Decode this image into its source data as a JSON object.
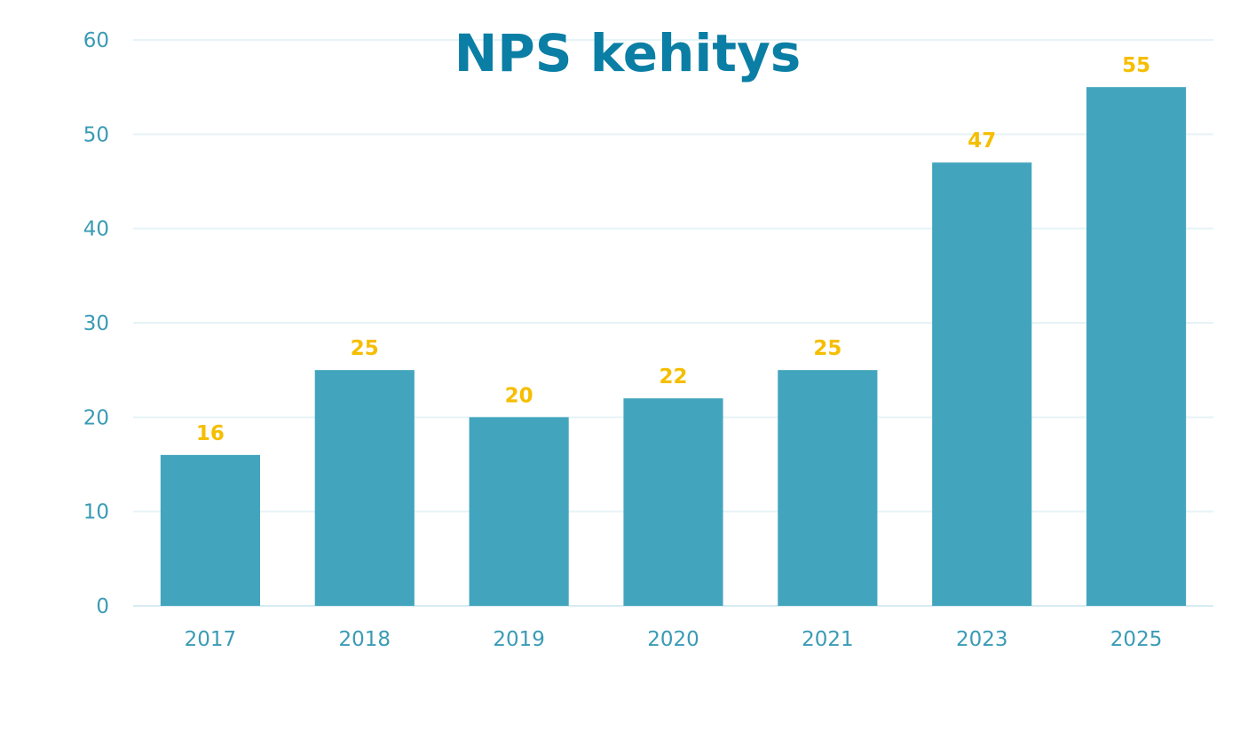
{
  "chart_data": {
    "type": "bar",
    "title": "NPS kehitys",
    "xlabel": "",
    "ylabel": "",
    "categories": [
      "2017",
      "2018",
      "2019",
      "2020",
      "2021",
      "2023",
      "2025"
    ],
    "values": [
      16,
      25,
      20,
      22,
      25,
      47,
      55
    ],
    "data_labels": [
      "16",
      "25",
      "20",
      "22",
      "25",
      "47",
      "55"
    ],
    "ylim": [
      0,
      60
    ],
    "yticks": [
      0,
      10,
      20,
      30,
      40,
      50,
      60
    ],
    "ytick_labels": [
      "0",
      "10",
      "20",
      "30",
      "40",
      "50",
      "60"
    ],
    "grid": true,
    "legend": "none"
  },
  "colors": {
    "bar": "#42a5bd",
    "title": "#0a7ea4",
    "data_label": "#f5be00",
    "axis_text": "#3a9bb5",
    "grid": "#e6f3f7",
    "baseline": "#d6ecf2"
  }
}
